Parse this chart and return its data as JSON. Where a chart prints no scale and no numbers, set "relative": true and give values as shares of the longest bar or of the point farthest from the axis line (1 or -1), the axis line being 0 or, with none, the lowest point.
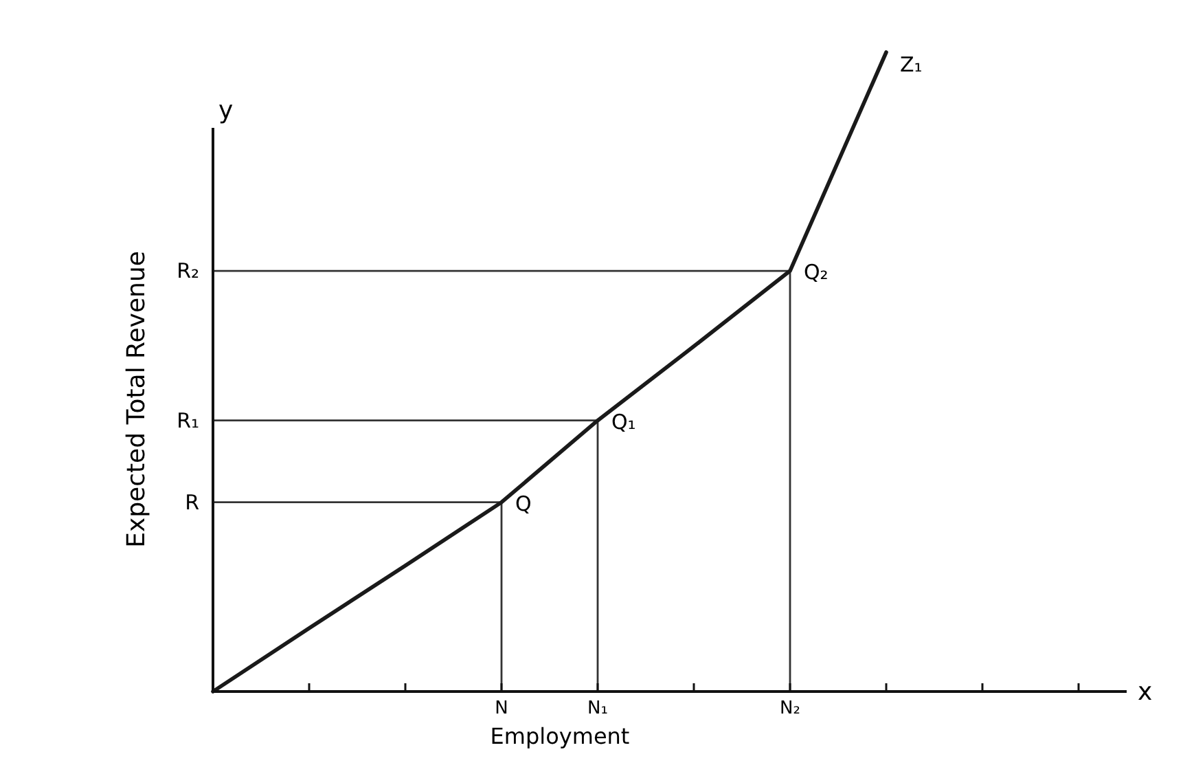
{
  "chart_data": {
    "type": "line",
    "xlabel": "Employment",
    "ylabel": "Expected Total Revenue",
    "relative": true,
    "categories": [
      null,
      null,
      null,
      "N",
      "N₁",
      null,
      "N₂",
      null,
      null,
      null
    ],
    "series": [
      {
        "color": "#1a1a1a",
        "values": [
          0,
          0.099,
          0.197,
          0.296,
          0.424,
          0.54,
          0.658,
          1.0,
          null,
          null
        ]
      }
    ],
    "annotations": [
      {
        "text": "Q",
        "x": "N",
        "y": 0.296
      },
      {
        "text": "Q₁",
        "x": "N₁",
        "y": 0.424
      },
      {
        "text": "Q₂",
        "x": "N₂",
        "y": 0.658
      },
      "Z₁",
      "x",
      "y",
      "R",
      "R₁",
      "R₂"
    ]
  }
}
